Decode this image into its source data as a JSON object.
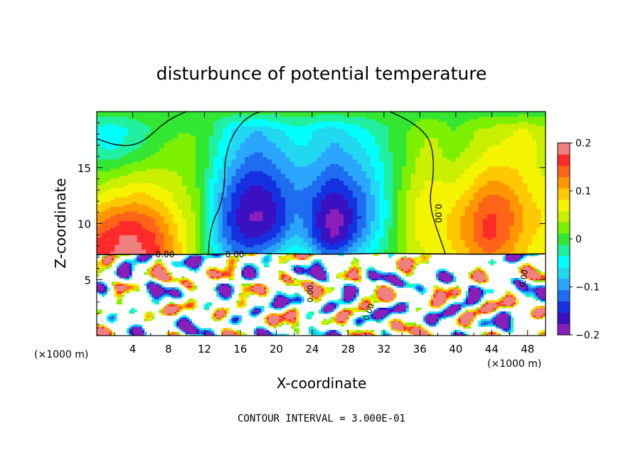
{
  "chart_data": {
    "type": "heatmap",
    "title": "disturbunce of potential temperature",
    "xlabel": "X-coordinate",
    "ylabel": "Z-coordinate",
    "x_unit_left": "(×1000 m)",
    "x_unit_right": "(×1000 m)",
    "xlim": [
      0,
      50
    ],
    "ylim": [
      0,
      20
    ],
    "x_ticks": [
      4,
      8,
      12,
      16,
      20,
      24,
      28,
      32,
      36,
      40,
      44,
      48
    ],
    "y_ticks": [
      5,
      10,
      15
    ],
    "colorbar": {
      "range": [
        -0.2,
        0.2
      ],
      "ticks": [
        {
          "value": 0.2,
          "label": "0.2"
        },
        {
          "value": 0.1,
          "label": "0.1"
        },
        {
          "value": 0.0,
          "label": "0"
        },
        {
          "value": -0.1,
          "label": "−0.1"
        },
        {
          "value": -0.2,
          "label": "−0.2"
        }
      ]
    },
    "contour_label": "0.00",
    "footnote": "CONTOUR INTERVAL = 3.000E-01",
    "grid": false,
    "colormap": [
      "#8a1fb8",
      "#3a10c0",
      "#1530e0",
      "#1e6cf0",
      "#2aa6ff",
      "#22d8f0",
      "#00ffff",
      "#20f0a0",
      "#32e632",
      "#7cf000",
      "#c8f000",
      "#f4f400",
      "#ffc800",
      "#ff9600",
      "#ff6418",
      "#ff2a2a",
      "#f08080",
      "#ffffff"
    ],
    "field": [
      [
        0,
        0,
        0,
        0,
        0,
        0,
        0,
        0,
        0,
        0,
        0,
        0,
        0,
        0,
        0,
        0,
        0,
        0,
        0,
        0,
        0,
        0,
        0,
        0,
        0,
        0,
        0,
        0,
        0,
        0,
        0,
        0,
        0,
        0,
        0,
        0,
        0,
        0,
        0,
        0,
        0,
        0,
        0,
        0,
        0,
        0,
        0,
        0,
        0,
        0
      ],
      [
        -0.04,
        -0.05,
        -0.05,
        -0.04,
        -0.03,
        -0.02,
        -0.01,
        0,
        0,
        0.01,
        0.01,
        0.01,
        0,
        -0.02,
        -0.04,
        -0.06,
        -0.07,
        -0.08,
        -0.08,
        -0.07,
        -0.06,
        -0.05,
        -0.04,
        -0.05,
        -0.06,
        -0.07,
        -0.07,
        -0.06,
        -0.05,
        -0.04,
        -0.03,
        -0.02,
        -0.01,
        0,
        0.01,
        0.02,
        0.03,
        0.03,
        0.02,
        0.01,
        0.02,
        0.03,
        0.04,
        0.04,
        0.05,
        0.05,
        0.06,
        0.06,
        0.05,
        0.04
      ],
      [
        -0.03,
        -0.04,
        -0.04,
        -0.03,
        -0.02,
        -0.01,
        0,
        0.01,
        0.02,
        0.02,
        0.02,
        0.01,
        0,
        -0.03,
        -0.05,
        -0.07,
        -0.09,
        -0.1,
        -0.1,
        -0.09,
        -0.08,
        -0.07,
        -0.06,
        -0.06,
        -0.07,
        -0.08,
        -0.09,
        -0.08,
        -0.07,
        -0.06,
        -0.05,
        -0.03,
        -0.01,
        0,
        0.02,
        0.03,
        0.04,
        0.04,
        0.03,
        0.02,
        0.03,
        0.04,
        0.05,
        0.06,
        0.06,
        0.07,
        0.07,
        0.07,
        0.06,
        0.05
      ],
      [
        0,
        0,
        0,
        0.01,
        0.02,
        0.02,
        0.03,
        0.03,
        0.03,
        0.03,
        0.02,
        0.01,
        -0.01,
        -0.04,
        -0.07,
        -0.09,
        -0.11,
        -0.12,
        -0.12,
        -0.11,
        -0.1,
        -0.09,
        -0.08,
        -0.08,
        -0.09,
        -0.1,
        -0.11,
        -0.1,
        -0.09,
        -0.08,
        -0.06,
        -0.04,
        -0.02,
        0,
        0.02,
        0.04,
        0.05,
        0.05,
        0.04,
        0.04,
        0.05,
        0.06,
        0.07,
        0.08,
        0.08,
        0.08,
        0.08,
        0.07,
        0.06,
        0.05
      ],
      [
        0.03,
        0.04,
        0.05,
        0.05,
        0.06,
        0.06,
        0.06,
        0.05,
        0.05,
        0.04,
        0.03,
        0.01,
        -0.02,
        -0.06,
        -0.09,
        -0.12,
        -0.14,
        -0.15,
        -0.15,
        -0.14,
        -0.12,
        -0.11,
        -0.1,
        -0.1,
        -0.11,
        -0.13,
        -0.14,
        -0.13,
        -0.11,
        -0.1,
        -0.08,
        -0.05,
        -0.02,
        0.01,
        0.03,
        0.05,
        0.06,
        0.06,
        0.06,
        0.06,
        0.07,
        0.08,
        0.1,
        0.11,
        0.11,
        0.1,
        0.09,
        0.08,
        0.07,
        0.06
      ],
      [
        0.07,
        0.08,
        0.09,
        0.09,
        0.1,
        0.1,
        0.09,
        0.08,
        0.07,
        0.05,
        0.04,
        0.02,
        -0.02,
        -0.07,
        -0.11,
        -0.14,
        -0.16,
        -0.17,
        -0.17,
        -0.16,
        -0.14,
        -0.12,
        -0.11,
        -0.12,
        -0.14,
        -0.16,
        -0.17,
        -0.16,
        -0.14,
        -0.12,
        -0.09,
        -0.06,
        -0.02,
        0.01,
        0.04,
        0.06,
        0.07,
        0.07,
        0.07,
        0.08,
        0.09,
        0.11,
        0.13,
        0.14,
        0.14,
        0.13,
        0.11,
        0.09,
        0.08,
        0.07
      ],
      [
        0.11,
        0.13,
        0.14,
        0.15,
        0.15,
        0.14,
        0.13,
        0.11,
        0.09,
        0.07,
        0.05,
        0.03,
        -0.02,
        -0.08,
        -0.12,
        -0.15,
        -0.17,
        -0.18,
        -0.18,
        -0.17,
        -0.15,
        -0.12,
        -0.1,
        -0.12,
        -0.15,
        -0.18,
        -0.19,
        -0.18,
        -0.15,
        -0.12,
        -0.09,
        -0.06,
        -0.02,
        0.01,
        0.04,
        0.06,
        0.07,
        0.07,
        0.08,
        0.09,
        0.11,
        0.13,
        0.15,
        0.16,
        0.15,
        0.14,
        0.12,
        0.1,
        0.09,
        0.08
      ],
      [
        0.15,
        0.16,
        0.17,
        0.18,
        0.18,
        0.17,
        0.16,
        0.14,
        0.11,
        0.08,
        0.06,
        0.03,
        -0.02,
        -0.07,
        -0.11,
        -0.14,
        -0.15,
        -0.16,
        -0.15,
        -0.14,
        -0.12,
        -0.09,
        -0.08,
        -0.1,
        -0.14,
        -0.17,
        -0.18,
        -0.16,
        -0.13,
        -0.1,
        -0.07,
        -0.04,
        -0.01,
        0.02,
        0.04,
        0.06,
        0.07,
        0.07,
        0.08,
        0.09,
        0.11,
        0.13,
        0.15,
        0.16,
        0.15,
        0.13,
        0.11,
        0.09,
        0.08,
        0.07
      ],
      [
        0.16,
        0.17,
        0.18,
        0.19,
        0.19,
        0.18,
        0.17,
        0.15,
        0.12,
        0.09,
        0.06,
        0.03,
        -0.01,
        -0.05,
        -0.08,
        -0.1,
        -0.11,
        -0.11,
        -0.1,
        -0.08,
        -0.06,
        -0.04,
        -0.03,
        -0.05,
        -0.08,
        -0.11,
        -0.12,
        -0.1,
        -0.08,
        -0.06,
        -0.04,
        -0.02,
        0,
        0.02,
        0.04,
        0.05,
        0.06,
        0.06,
        0.07,
        0.08,
        0.09,
        0.11,
        0.12,
        0.13,
        0.12,
        0.11,
        0.09,
        0.08,
        0.07,
        0.06
      ]
    ]
  }
}
